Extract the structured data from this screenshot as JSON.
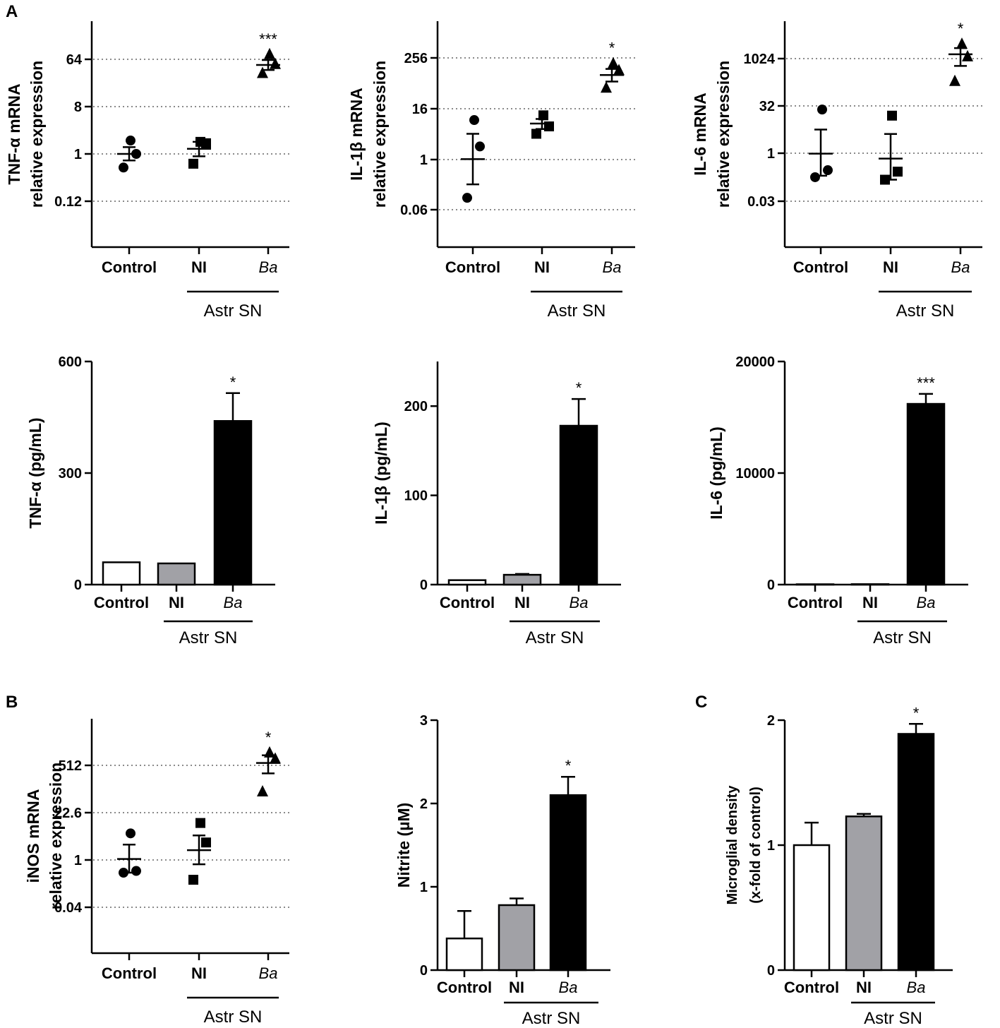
{
  "figure": {
    "panel_letters": [
      "A",
      "B",
      "C"
    ],
    "group_label": "Astr SN"
  },
  "chart_data": [
    {
      "id": "tnf-mrna",
      "type": "scatter",
      "scale": "log2",
      "ylabel_lines": [
        "TNF-α mRNA",
        "relative expression"
      ],
      "categories": [
        "Control",
        "NI",
        "Ba"
      ],
      "yticks": [
        {
          "v": 0.125,
          "label": "0.12"
        },
        {
          "v": 1,
          "label": "1"
        },
        {
          "v": 8,
          "label": "8"
        },
        {
          "v": 64,
          "label": "64"
        }
      ],
      "series": [
        {
          "name": "Control",
          "marker": "circle",
          "points": [
            0.55,
            1.0,
            1.8
          ],
          "mean": 1.0,
          "sem": [
            0.75,
            1.35
          ]
        },
        {
          "name": "NI",
          "marker": "square",
          "points": [
            0.65,
            1.6,
            1.7
          ],
          "mean": 1.25,
          "sem": [
            0.9,
            1.7
          ]
        },
        {
          "name": "Ba",
          "marker": "triangle",
          "points": [
            35,
            52,
            80
          ],
          "mean": 50,
          "sem": [
            40,
            62
          ]
        }
      ],
      "significance": [
        "",
        "",
        "***"
      ]
    },
    {
      "id": "il1b-mrna",
      "type": "scatter",
      "scale": "log2",
      "ylabel_lines": [
        "IL-1β mRNA",
        "relative expression"
      ],
      "categories": [
        "Control",
        "NI",
        "Ba"
      ],
      "yticks": [
        {
          "v": 0.0625,
          "label": "0.06"
        },
        {
          "v": 1,
          "label": "1"
        },
        {
          "v": 16,
          "label": "16"
        },
        {
          "v": 256,
          "label": "256"
        }
      ],
      "series": [
        {
          "name": "Control",
          "marker": "circle",
          "points": [
            0.12,
            2.0,
            8.5
          ],
          "mean": 1.0,
          "sem": [
            0.25,
            4.0
          ]
        },
        {
          "name": "NI",
          "marker": "square",
          "points": [
            4.0,
            6.0,
            11.0
          ],
          "mean": 7.0,
          "sem": [
            5.2,
            9.0
          ]
        },
        {
          "name": "Ba",
          "marker": "triangle",
          "points": [
            50,
            130,
            190
          ],
          "mean": 100,
          "sem": [
            70,
            140
          ]
        }
      ],
      "significance": [
        "",
        "",
        "*"
      ]
    },
    {
      "id": "il6-mrna",
      "type": "scatter",
      "scale": "log2",
      "ylabel_lines": [
        "IL-6 mRNA",
        "relative expression"
      ],
      "categories": [
        "Control",
        "NI",
        "Ba"
      ],
      "yticks": [
        {
          "v": 0.03125,
          "label": "0.03"
        },
        {
          "v": 1,
          "label": "1"
        },
        {
          "v": 32,
          "label": "32"
        },
        {
          "v": 1024,
          "label": "1024"
        }
      ],
      "series": [
        {
          "name": "Control",
          "marker": "circle",
          "points": [
            0.18,
            0.3,
            25
          ],
          "mean": 1.0,
          "sem": [
            0.2,
            5.8
          ]
        },
        {
          "name": "NI",
          "marker": "square",
          "points": [
            0.15,
            0.27,
            16
          ],
          "mean": 0.7,
          "sem": [
            0.15,
            4.2
          ]
        },
        {
          "name": "Ba",
          "marker": "triangle",
          "points": [
            200,
            1200,
            3000
          ],
          "mean": 1400,
          "sem": [
            600,
            2200
          ]
        }
      ],
      "significance": [
        "",
        "",
        "*"
      ]
    },
    {
      "id": "tnf-protein",
      "type": "bar",
      "ylabel": "TNF-α (pg/mL)",
      "categories": [
        "Control",
        "NI",
        "Ba"
      ],
      "ylim": [
        0,
        600
      ],
      "yticks": [
        {
          "v": 0,
          "label": "0"
        },
        {
          "v": 300,
          "label": "300"
        },
        {
          "v": 600,
          "label": "600"
        }
      ],
      "values": [
        60,
        57,
        440
      ],
      "errors": [
        0,
        0,
        75
      ],
      "fills": [
        "#ffffff",
        "#a1a1a6",
        "#000000"
      ],
      "significance": [
        "",
        "",
        "*"
      ]
    },
    {
      "id": "il1b-protein",
      "type": "bar",
      "ylabel": "IL-1β (pg/mL)",
      "categories": [
        "Control",
        "NI",
        "Ba"
      ],
      "ylim": [
        0,
        250
      ],
      "yticks": [
        {
          "v": 0,
          "label": "0"
        },
        {
          "v": 100,
          "label": "100"
        },
        {
          "v": 200,
          "label": "200"
        }
      ],
      "values": [
        5,
        11,
        178
      ],
      "errors": [
        0,
        1,
        30
      ],
      "fills": [
        "#ffffff",
        "#a1a1a6",
        "#000000"
      ],
      "significance": [
        "",
        "",
        "*"
      ]
    },
    {
      "id": "il6-protein",
      "type": "bar",
      "ylabel": "IL-6 (pg/mL)",
      "categories": [
        "Control",
        "NI",
        "Ba"
      ],
      "ylim": [
        0,
        20000
      ],
      "yticks": [
        {
          "v": 0,
          "label": "0"
        },
        {
          "v": 10000,
          "label": "10000"
        },
        {
          "v": 20000,
          "label": "20000"
        }
      ],
      "values": [
        0,
        40,
        16200
      ],
      "errors": [
        0,
        0,
        900
      ],
      "fills": [
        "#ffffff",
        "#a1a1a6",
        "#000000"
      ],
      "significance": [
        "",
        "",
        "***"
      ]
    },
    {
      "id": "inos-mrna",
      "type": "scatter",
      "scale": "log",
      "ylabel_lines": [
        "iNOS mRNA",
        "relative expression"
      ],
      "categories": [
        "Control",
        "NI",
        "Ba"
      ],
      "yticks": [
        {
          "v": 0.04,
          "label": "0.04"
        },
        {
          "v": 1,
          "label": "1"
        },
        {
          "v": 22.6,
          "label": "22.6"
        },
        {
          "v": 512,
          "label": "512"
        }
      ],
      "series": [
        {
          "name": "Control",
          "marker": "circle",
          "points": [
            0.4,
            0.45,
            5.5
          ],
          "mean": 1.0,
          "sem": [
            0.4,
            2.6
          ]
        },
        {
          "name": "NI",
          "marker": "square",
          "points": [
            0.25,
            3.0,
            11.0
          ],
          "mean": 1.8,
          "sem": [
            0.7,
            4.8
          ]
        },
        {
          "name": "Ba",
          "marker": "triangle",
          "points": [
            90,
            800,
            1200
          ],
          "mean": 600,
          "sem": [
            300,
            1000
          ]
        }
      ],
      "significance": [
        "",
        "",
        "*"
      ]
    },
    {
      "id": "nitrite",
      "type": "bar",
      "ylabel": "Nitrite (µM)",
      "categories": [
        "Control",
        "NI",
        "Ba"
      ],
      "ylim": [
        0,
        3
      ],
      "yticks": [
        {
          "v": 0,
          "label": "0"
        },
        {
          "v": 1,
          "label": "1"
        },
        {
          "v": 2,
          "label": "2"
        },
        {
          "v": 3,
          "label": "3"
        }
      ],
      "values": [
        0.38,
        0.78,
        2.1
      ],
      "errors": [
        0.33,
        0.08,
        0.22
      ],
      "fills": [
        "#ffffff",
        "#a1a1a6",
        "#000000"
      ],
      "significance": [
        "",
        "",
        "*"
      ]
    },
    {
      "id": "microglia",
      "type": "bar",
      "ylabel_lines": [
        "Microglial density",
        "(x-fold of control)"
      ],
      "categories": [
        "Control",
        "NI",
        "Ba"
      ],
      "ylim": [
        0,
        2
      ],
      "yticks": [
        {
          "v": 0,
          "label": "0"
        },
        {
          "v": 1,
          "label": "1"
        },
        {
          "v": 2,
          "label": "2"
        }
      ],
      "values": [
        1.0,
        1.23,
        1.89
      ],
      "errors": [
        0.18,
        0.02,
        0.08
      ],
      "fills": [
        "#ffffff",
        "#a1a1a6",
        "#000000"
      ],
      "significance": [
        "",
        "",
        "*"
      ]
    }
  ]
}
